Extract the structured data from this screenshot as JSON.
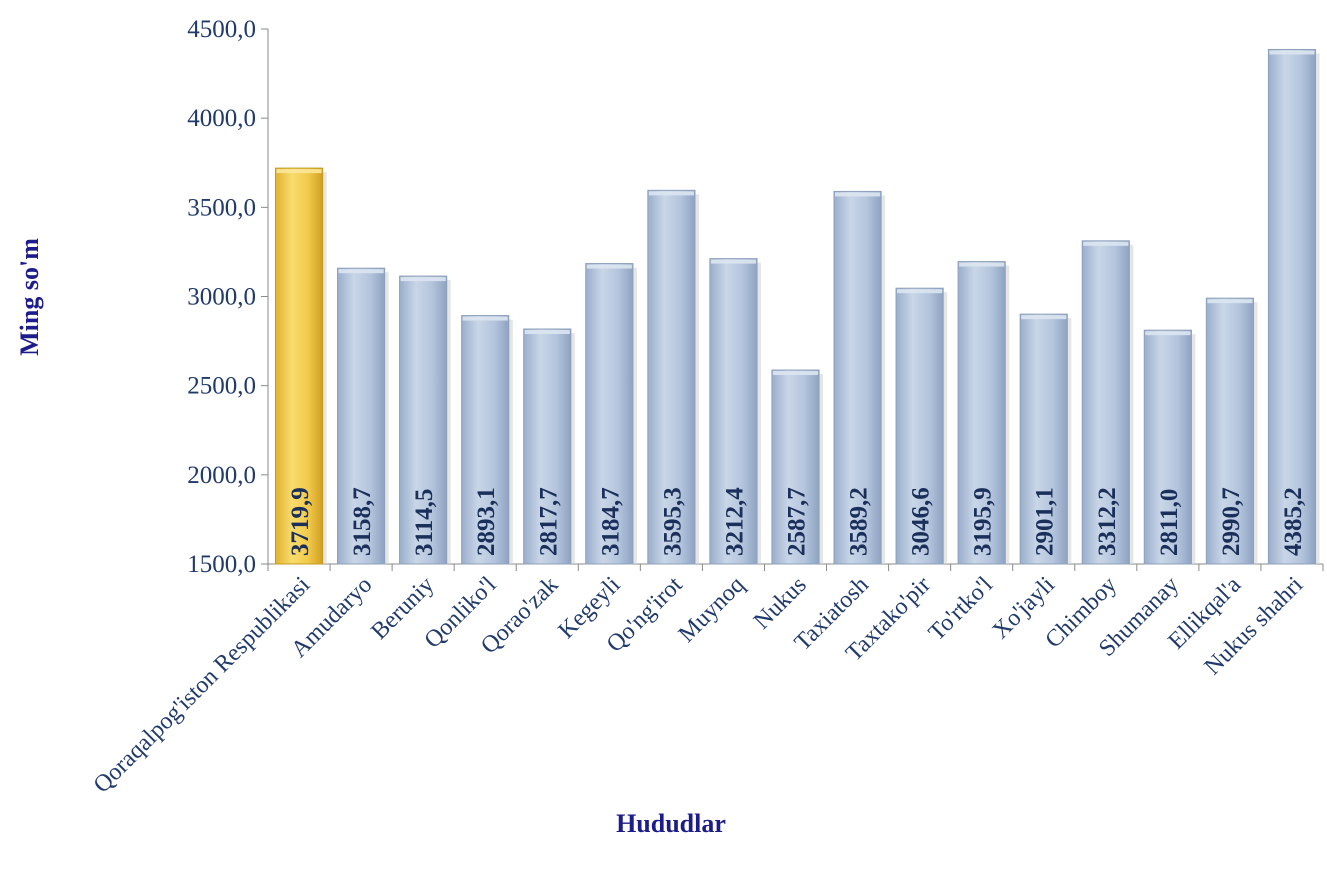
{
  "chart_data": {
    "type": "bar",
    "title": "",
    "xlabel": "Hududlar",
    "ylabel": "Ming so'm",
    "ylim": [
      1500,
      4500
    ],
    "yticks": [
      "4500,0",
      "4000,0",
      "3500,0",
      "3000,0",
      "2500,0",
      "2000,0",
      "1500,0"
    ],
    "ytick_values": [
      4500,
      4000,
      3500,
      3000,
      2500,
      2000,
      1500
    ],
    "categories": [
      "Qoraqalpog'iston Respublikasi",
      "Amudaryo",
      "Beruniy",
      "Qonliko'l",
      "Qorao'zak",
      "Kegeyli",
      "Qo'ng'irot",
      "Muynoq",
      "Nukus",
      "Taxiatosh",
      "Taxtako'pir",
      "To'rtko'l",
      "Xo'jayli",
      "Chimboy",
      "Shumanay",
      "Ellikqal'a",
      "Nukus shahri"
    ],
    "values": [
      3719.9,
      3158.7,
      3114.5,
      2893.1,
      2817.7,
      3184.7,
      3595.3,
      3212.4,
      2587.7,
      3589.2,
      3046.6,
      3195.9,
      2901.1,
      3312.2,
      2811.0,
      2990.7,
      4385.2
    ],
    "value_labels": [
      "3719,9",
      "3158,7",
      "3114,5",
      "2893,1",
      "2817,7",
      "3184,7",
      "3595,3",
      "3212,4",
      "2587,7",
      "3589,2",
      "3046,6",
      "3195,9",
      "2901,1",
      "3312,2",
      "2811,0",
      "2990,7",
      "4385,2"
    ],
    "grid": false,
    "legend": "none",
    "colors": {
      "highlight_bar": "#f2cc4c",
      "bar": "#b7c7dd",
      "text": "#1f3a6b",
      "axis_title": "#1c1c8c"
    }
  }
}
